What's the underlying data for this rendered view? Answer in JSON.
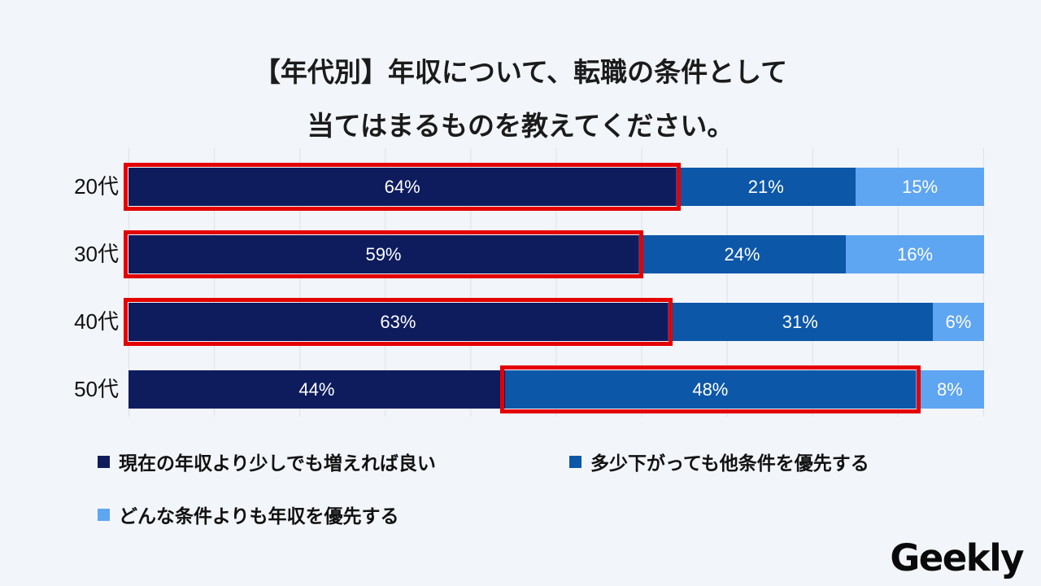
{
  "title": {
    "line1": "【年代別】年収について、転職の条件として",
    "line2": "当てはまるものを教えてください。"
  },
  "chart_data": {
    "type": "bar",
    "orientation": "horizontal",
    "stacked": true,
    "title": "【年代別】年収について、転職の条件として当てはまるものを教えてください。",
    "categories": [
      "20代",
      "30代",
      "40代",
      "50代"
    ],
    "series": [
      {
        "name": "現在の年収より少しでも増えれば良い",
        "color": "#0e1c5e",
        "values": [
          64,
          59,
          63,
          44
        ]
      },
      {
        "name": "多少下がっても他条件を優先する",
        "color": "#0d57a8",
        "values": [
          21,
          24,
          31,
          48
        ]
      },
      {
        "name": "どんな条件よりも年収を優先する",
        "color": "#5ea5f2",
        "values": [
          15,
          16,
          6,
          8
        ]
      }
    ],
    "value_suffix": "%",
    "xlim": [
      0,
      100
    ],
    "grid": true,
    "legend_position": "bottom",
    "highlight_color": "#e50000",
    "highlights": [
      {
        "row": 0,
        "series": 0
      },
      {
        "row": 1,
        "series": 0
      },
      {
        "row": 2,
        "series": 0
      },
      {
        "row": 3,
        "series": 1
      }
    ]
  },
  "legend": [
    {
      "label": "現在の年収より少しでも増えれば良い",
      "color": "#0e1c5e"
    },
    {
      "label": "多少下がっても他条件を優先する",
      "color": "#0d57a8"
    },
    {
      "label": "どんな条件よりも年収を優先する",
      "color": "#5ea5f2"
    }
  ],
  "logo": {
    "text": "Geekly"
  }
}
